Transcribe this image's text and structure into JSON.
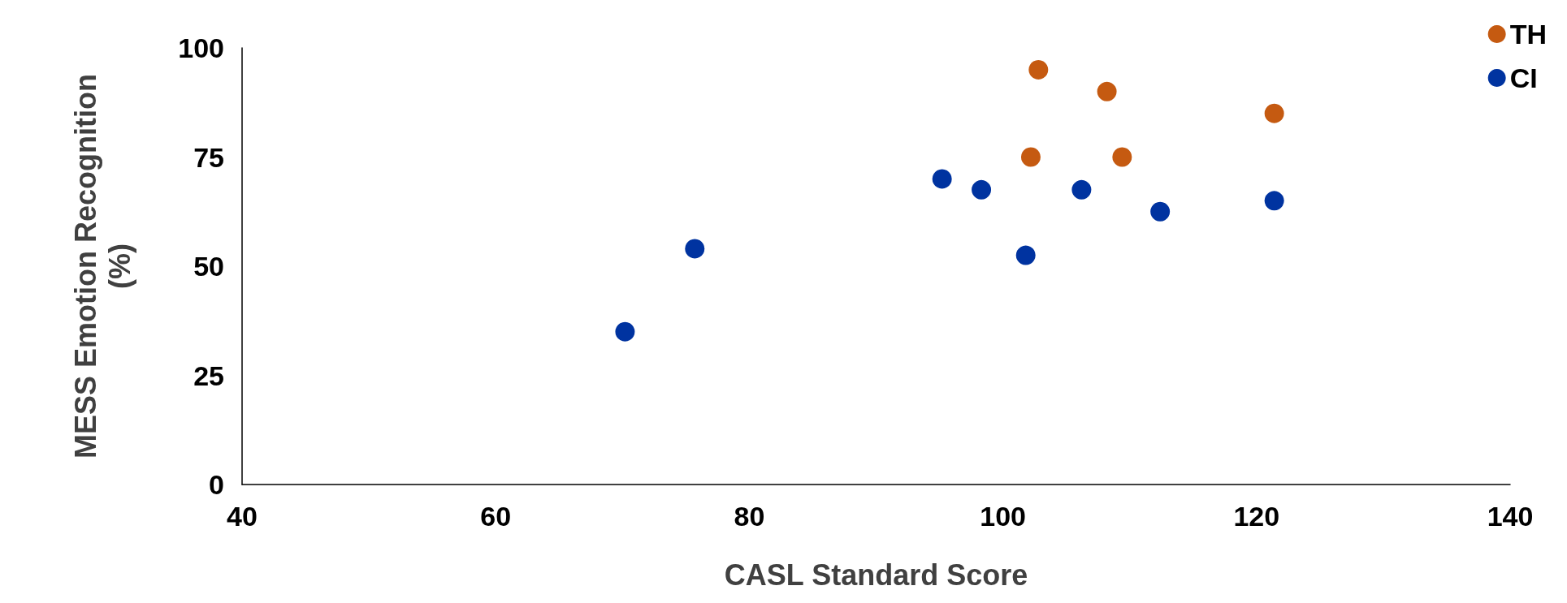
{
  "chart_data": {
    "type": "scatter",
    "xlabel": "CASL Standard Score",
    "ylabel": "MESS Emotion Recognition\n(%)",
    "series": [
      {
        "name": "TH",
        "color": "#c55a11",
        "x": [
          102.8,
          108.2,
          121.4,
          102.2,
          109.4
        ],
        "values": [
          95,
          90,
          85,
          75,
          75
        ]
      },
      {
        "name": "CI",
        "color": "#0033a0",
        "x": [
          95.2,
          98.3,
          106.2,
          112.4,
          121.4,
          101.8,
          75.7,
          70.2
        ],
        "values": [
          70,
          67.5,
          67.5,
          62.5,
          65,
          52.5,
          54,
          35
        ]
      }
    ],
    "xlim": [
      40,
      140
    ],
    "xticks": [
      40,
      60,
      80,
      100,
      120,
      140
    ],
    "ylim": [
      0,
      100
    ],
    "yticks": [
      0,
      25,
      50,
      75,
      100
    ],
    "grid": false,
    "legend": "top right",
    "marker": "circle"
  }
}
